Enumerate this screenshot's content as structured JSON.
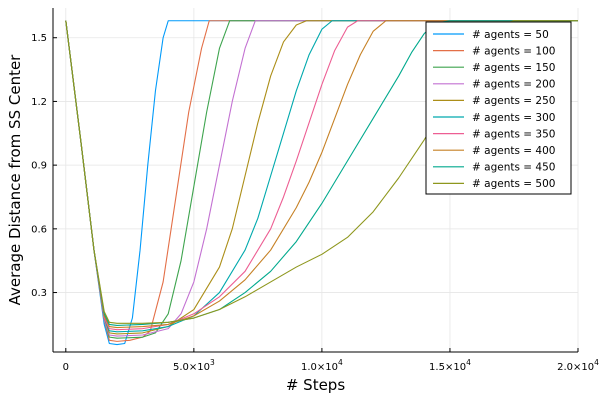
{
  "chart_data": {
    "type": "line",
    "xlabel": "# Steps",
    "ylabel": "Average Distance from SS Center",
    "xlim": [
      -500,
      20000
    ],
    "ylim": [
      0.02,
      1.64
    ],
    "xticks": [
      {
        "value": 0,
        "mant": "0",
        "exp": ""
      },
      {
        "value": 5000,
        "mant": "5.0×10",
        "exp": "3"
      },
      {
        "value": 10000,
        "mant": "1.0×10",
        "exp": "4"
      },
      {
        "value": 15000,
        "mant": "1.5×10",
        "exp": "4"
      },
      {
        "value": 20000,
        "mant": "2.0×10",
        "exp": "4"
      }
    ],
    "yticks": [
      {
        "value": 0.3,
        "label": "0.3"
      },
      {
        "value": 0.6,
        "label": "0.6"
      },
      {
        "value": 0.9,
        "label": "0.9"
      },
      {
        "value": 1.2,
        "label": "1.2"
      },
      {
        "value": 1.5,
        "label": "1.5"
      }
    ],
    "grid": true,
    "legend_position": "top-right",
    "series": [
      {
        "name": "# agents = 50",
        "color": "#009AFA",
        "x": [
          0,
          600,
          1100,
          1500,
          1700,
          2000,
          2300,
          2600,
          2900,
          3200,
          3500,
          3800,
          4000,
          4300,
          20000
        ],
        "y": [
          1.58,
          1.0,
          0.5,
          0.15,
          0.06,
          0.055,
          0.06,
          0.18,
          0.5,
          0.9,
          1.25,
          1.5,
          1.58,
          1.58,
          1.58
        ]
      },
      {
        "name": "# agents = 100",
        "color": "#E36F47",
        "x": [
          0,
          600,
          1100,
          1500,
          1700,
          2000,
          2500,
          3000,
          3300,
          3800,
          4300,
          4800,
          5300,
          5600,
          6000,
          20000
        ],
        "y": [
          1.58,
          1.0,
          0.5,
          0.17,
          0.075,
          0.07,
          0.075,
          0.09,
          0.12,
          0.35,
          0.75,
          1.15,
          1.45,
          1.58,
          1.58,
          1.58
        ]
      },
      {
        "name": "# agents = 150",
        "color": "#3EA44E",
        "x": [
          0,
          600,
          1100,
          1500,
          1700,
          2000,
          3000,
          3500,
          4000,
          4500,
          5000,
          5500,
          6000,
          6400,
          6800,
          20000
        ],
        "y": [
          1.58,
          1.0,
          0.5,
          0.17,
          0.09,
          0.085,
          0.09,
          0.11,
          0.2,
          0.45,
          0.8,
          1.15,
          1.45,
          1.58,
          1.58,
          1.58
        ]
      },
      {
        "name": "# agents = 200",
        "color": "#C371D2",
        "x": [
          0,
          600,
          1100,
          1500,
          1700,
          2000,
          3000,
          4000,
          4500,
          5000,
          5500,
          6000,
          6500,
          7000,
          7400,
          7800,
          20000
        ],
        "y": [
          1.58,
          1.0,
          0.5,
          0.17,
          0.1,
          0.095,
          0.1,
          0.13,
          0.2,
          0.35,
          0.6,
          0.9,
          1.2,
          1.45,
          1.58,
          1.58,
          1.58
        ]
      },
      {
        "name": "# agents = 250",
        "color": "#AC8E18",
        "x": [
          0,
          600,
          1100,
          1500,
          1700,
          2000,
          3000,
          4000,
          5000,
          6000,
          6500,
          7000,
          7500,
          8000,
          8500,
          9000,
          9400,
          20000
        ],
        "y": [
          1.58,
          1.0,
          0.5,
          0.18,
          0.11,
          0.105,
          0.11,
          0.14,
          0.22,
          0.42,
          0.6,
          0.85,
          1.1,
          1.32,
          1.48,
          1.56,
          1.58,
          1.58
        ]
      },
      {
        "name": "# agents = 300",
        "color": "#00A9AD",
        "x": [
          0,
          600,
          1100,
          1500,
          1700,
          2000,
          3000,
          4000,
          5000,
          6000,
          7000,
          7500,
          8000,
          8500,
          9000,
          9500,
          10000,
          10400,
          20000
        ],
        "y": [
          1.58,
          1.0,
          0.5,
          0.18,
          0.12,
          0.115,
          0.12,
          0.14,
          0.19,
          0.3,
          0.5,
          0.65,
          0.85,
          1.05,
          1.25,
          1.42,
          1.54,
          1.58,
          1.58
        ]
      },
      {
        "name": "# agents = 350",
        "color": "#ED5E93",
        "x": [
          0,
          600,
          1100,
          1500,
          1700,
          2000,
          3000,
          4000,
          5000,
          6000,
          7000,
          8000,
          8500,
          9000,
          9500,
          10000,
          10500,
          11000,
          11400,
          20000
        ],
        "y": [
          1.58,
          1.0,
          0.5,
          0.18,
          0.13,
          0.125,
          0.13,
          0.15,
          0.2,
          0.28,
          0.4,
          0.6,
          0.75,
          0.92,
          1.1,
          1.28,
          1.44,
          1.55,
          1.58,
          1.58
        ]
      },
      {
        "name": "# agents = 400",
        "color": "#C68125",
        "x": [
          0,
          600,
          1100,
          1500,
          1700,
          2000,
          3000,
          4000,
          5000,
          6000,
          7000,
          8000,
          9000,
          9500,
          10000,
          10500,
          11000,
          11500,
          12000,
          12500,
          20000
        ],
        "y": [
          1.58,
          1.0,
          0.5,
          0.19,
          0.14,
          0.135,
          0.14,
          0.15,
          0.19,
          0.26,
          0.36,
          0.5,
          0.7,
          0.82,
          0.96,
          1.12,
          1.28,
          1.42,
          1.53,
          1.58,
          1.58
        ]
      },
      {
        "name": "# agents = 450",
        "color": "#00A98D",
        "x": [
          0,
          600,
          1100,
          1500,
          1700,
          2000,
          3000,
          4000,
          5000,
          6000,
          7000,
          8000,
          9000,
          10000,
          11000,
          12000,
          13000,
          13500,
          14000,
          14500,
          15000,
          20000
        ],
        "y": [
          1.58,
          1.0,
          0.5,
          0.2,
          0.15,
          0.145,
          0.15,
          0.16,
          0.18,
          0.22,
          0.3,
          0.4,
          0.54,
          0.72,
          0.92,
          1.12,
          1.32,
          1.43,
          1.52,
          1.57,
          1.58,
          1.58
        ]
      },
      {
        "name": "# agents = 500",
        "color": "#8E971D",
        "x": [
          0,
          600,
          1100,
          1500,
          1700,
          2000,
          3000,
          4000,
          5000,
          6000,
          7000,
          8000,
          9000,
          10000,
          11000,
          12000,
          13000,
          14000,
          15000,
          16000,
          16500,
          17000,
          17500,
          20000
        ],
        "y": [
          1.58,
          1.0,
          0.5,
          0.21,
          0.16,
          0.155,
          0.155,
          0.16,
          0.18,
          0.22,
          0.28,
          0.35,
          0.42,
          0.48,
          0.56,
          0.68,
          0.84,
          1.02,
          1.22,
          1.42,
          1.5,
          1.56,
          1.58,
          1.58
        ]
      }
    ]
  }
}
